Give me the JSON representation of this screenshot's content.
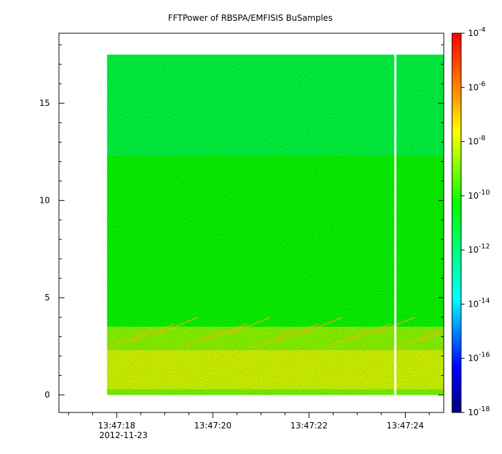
{
  "chart_data": {
    "type": "heatmap",
    "title": "FFTPower of RBSPA/EMFISIS  BuSamples",
    "xlabel": "",
    "ylabel": "",
    "x_ticks": [
      "13:47:18",
      "13:47:20",
      "13:47:22",
      "13:47:24"
    ],
    "x_tick_values": [
      18,
      20,
      22,
      24
    ],
    "x_date": "2012-11-23",
    "xlim": [
      16.8,
      24.8
    ],
    "y_ticks": [
      "0",
      "5",
      "10",
      "15"
    ],
    "y_tick_values": [
      0,
      5,
      10,
      15
    ],
    "ylim": [
      -0.9,
      18.6
    ],
    "data_x_range": [
      17.8,
      24.8
    ],
    "data_y_range": [
      0,
      17.5
    ],
    "data_gap_at_x": 23.8,
    "colorbar": {
      "scale": "log",
      "range_exponents": [
        -18,
        -4
      ],
      "ticks": [
        {
          "base": "10",
          "exp": "-4"
        },
        {
          "base": "10",
          "exp": "-6"
        },
        {
          "base": "10",
          "exp": "-8"
        },
        {
          "base": "10",
          "exp": "-10"
        },
        {
          "base": "10",
          "exp": "-12"
        },
        {
          "base": "10",
          "exp": "-14"
        },
        {
          "base": "10",
          "exp": "-16"
        },
        {
          "base": "10",
          "exp": "-18"
        }
      ],
      "tick_exponent_values": [
        -4,
        -6,
        -8,
        -10,
        -12,
        -14,
        -16,
        -18
      ]
    },
    "bands": [
      {
        "y_range": [
          12.3,
          17.5
        ],
        "log_power": -11.2
      },
      {
        "y_range": [
          3.5,
          12.3
        ],
        "log_power": -10.2
      },
      {
        "y_range": [
          2.3,
          3.5
        ],
        "log_power": -8.8
      },
      {
        "y_range": [
          0.3,
          2.3
        ],
        "log_power": -8.0
      },
      {
        "y_range": [
          0,
          0.3
        ],
        "log_power": -9.0
      }
    ],
    "colors": {
      "bottom": "#00007f",
      "blue": "#0000ff",
      "cyan": "#00ffff",
      "green": "#00ff00",
      "yellow": "#ffff00",
      "red": "#ff0000",
      "top": "#e60000"
    }
  }
}
